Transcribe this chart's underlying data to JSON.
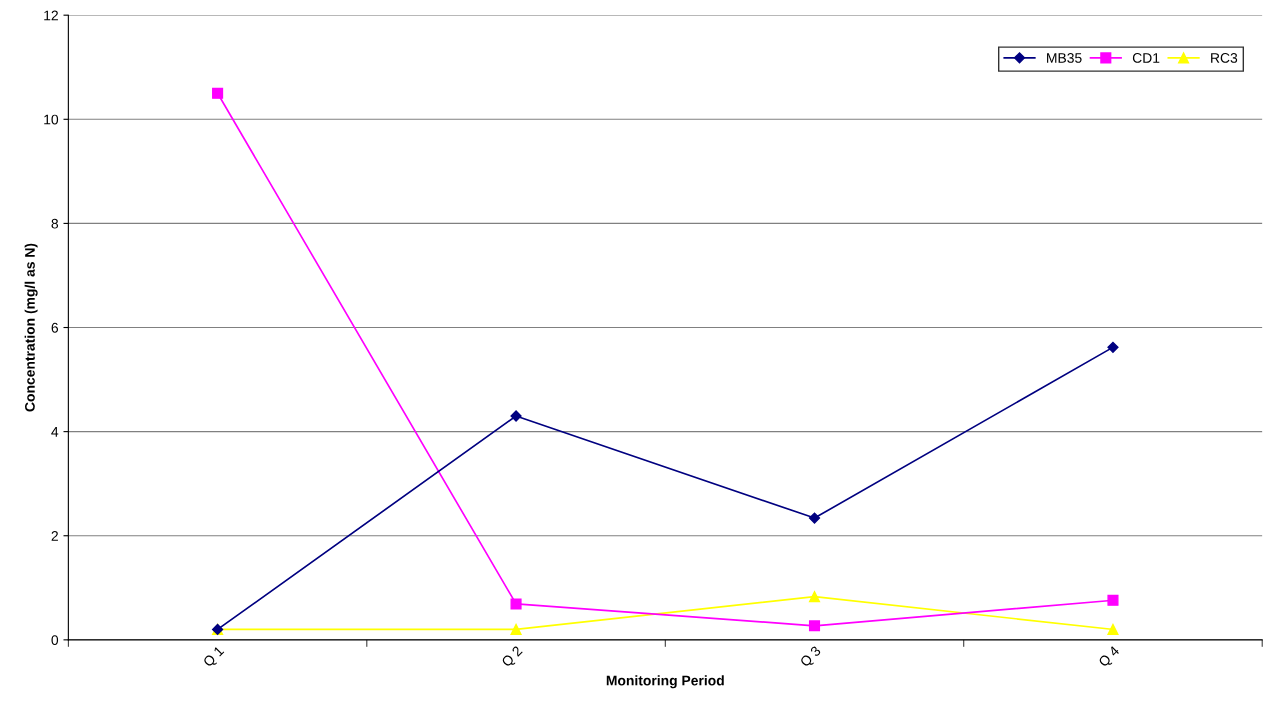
{
  "chart_data": {
    "type": "line",
    "xlabel": "Monitoring Period",
    "ylabel": "Concentration (mg/l as N)",
    "categories": [
      "Q 1",
      "Q 2",
      "Q 3",
      "Q 4"
    ],
    "series": [
      {
        "name": "MB35",
        "color": "#000080",
        "marker": "diamond",
        "values": [
          0.2,
          4.3,
          2.34,
          5.62
        ]
      },
      {
        "name": "CD1",
        "color": "#ff00ff",
        "marker": "square",
        "values": [
          10.5,
          0.69,
          0.27,
          0.76
        ]
      },
      {
        "name": "RC3",
        "color": "#ffff00",
        "marker": "triangle",
        "values": [
          0.2,
          0.2,
          0.83,
          0.2
        ]
      }
    ],
    "ylim": [
      0,
      12
    ],
    "yticks": [
      0,
      2,
      4,
      6,
      8,
      10,
      12
    ],
    "grid": "y",
    "legend": "top right"
  }
}
